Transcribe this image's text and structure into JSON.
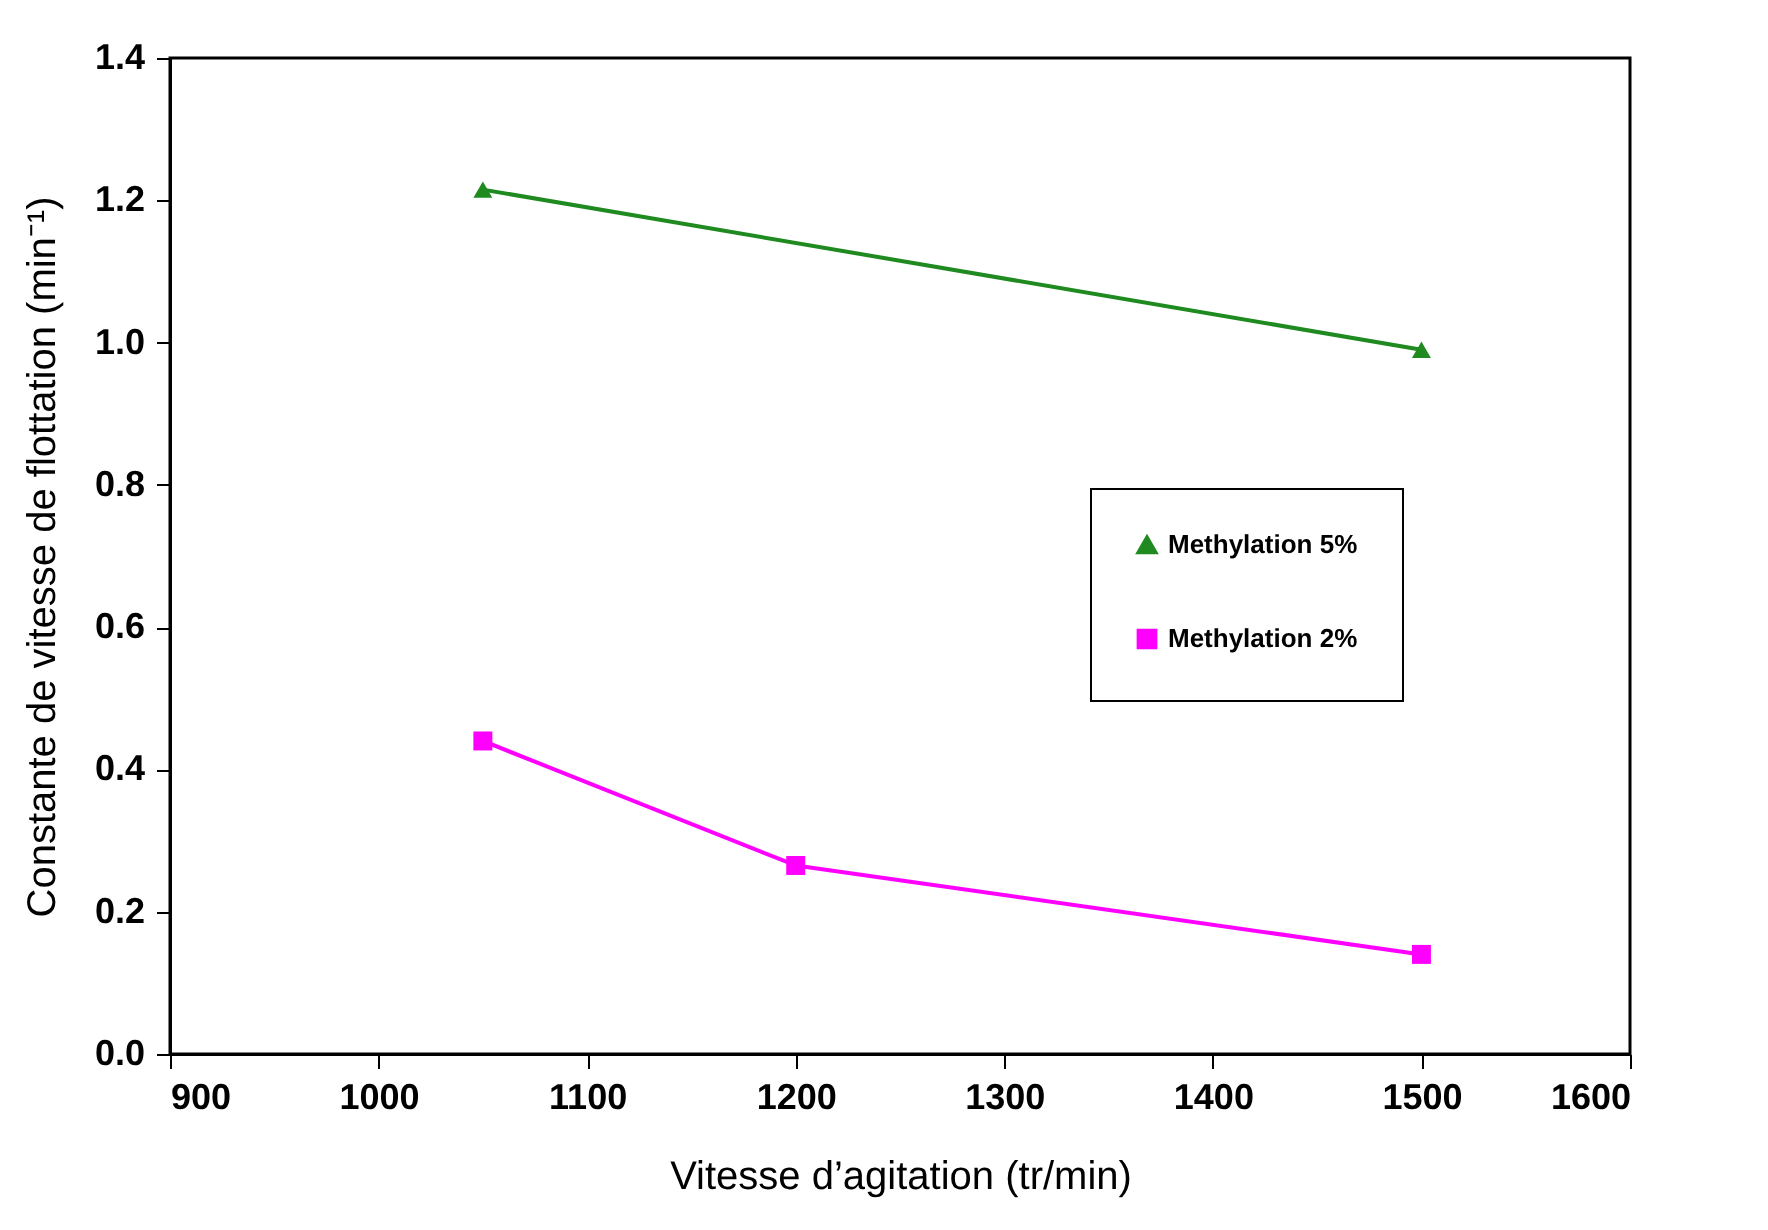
{
  "chart_data": {
    "type": "line",
    "xlabel": "Vitesse d’agitation (tr/min)",
    "ylabel": "Constante de vitesse de flottation (min⁻¹)",
    "xlim": [
      900,
      1600
    ],
    "xticks": [
      900,
      1000,
      1100,
      1200,
      1300,
      1400,
      1500,
      1600
    ],
    "ylim": [
      0,
      1.4
    ],
    "yticks": [
      {
        "value": 0,
        "label": "0.0"
      },
      0.2,
      0.4,
      0.6,
      0.8,
      {
        "value": 1,
        "label": "1.0"
      },
      1.2,
      1.4
    ],
    "line_style": "solid",
    "grid": false,
    "legend": "right",
    "series": [
      {
        "name": "Methylation 5%",
        "color": "#1f8a1f",
        "marker": "triangle",
        "x": [
          1050,
          1500
        ],
        "values": [
          1.215,
          0.99
        ]
      },
      {
        "name": "Methylation 2%",
        "color": "#ff00ff",
        "marker": "square",
        "x": [
          1050,
          1200,
          1500
        ],
        "values": [
          0.44,
          0.265,
          0.14
        ]
      }
    ]
  }
}
